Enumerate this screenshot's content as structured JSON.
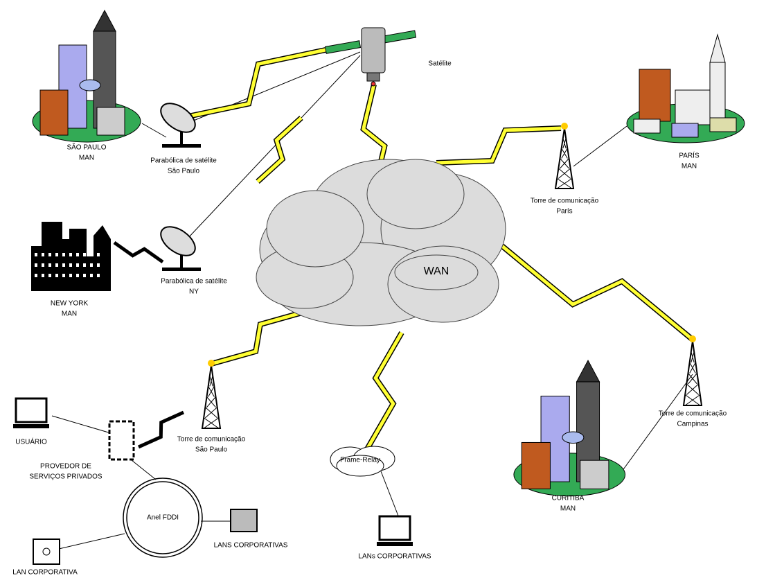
{
  "labels": [
    [
      "Satélite"
    ],
    [
      "SÃO PAULO",
      "MAN"
    ],
    [
      "Parabólica de satélite",
      "São Paulo"
    ],
    [
      "PARÍS",
      "MAN"
    ],
    [
      "Torre de comunicação",
      "París"
    ],
    [
      "NEW YORK",
      "MAN"
    ],
    [
      "Parabólica de satélite",
      "NY"
    ],
    [
      "WAN"
    ],
    [
      "Torre de comunicação",
      "São Paulo"
    ],
    [
      "USUÁRIO"
    ],
    [
      "PROVEDOR DE",
      "SERVIÇOS PRIVADOS"
    ],
    [
      "Anel FDDI"
    ],
    [
      "LANS CORPORATIVAS"
    ],
    [
      "LAN CORPORATIVA"
    ],
    [
      "Frame-Relay"
    ],
    [
      "LANs CORPORATIVAS"
    ],
    [
      "Torre de comunicação",
      "Campinas"
    ],
    [
      "CURITIBA",
      "MAN"
    ]
  ]
}
